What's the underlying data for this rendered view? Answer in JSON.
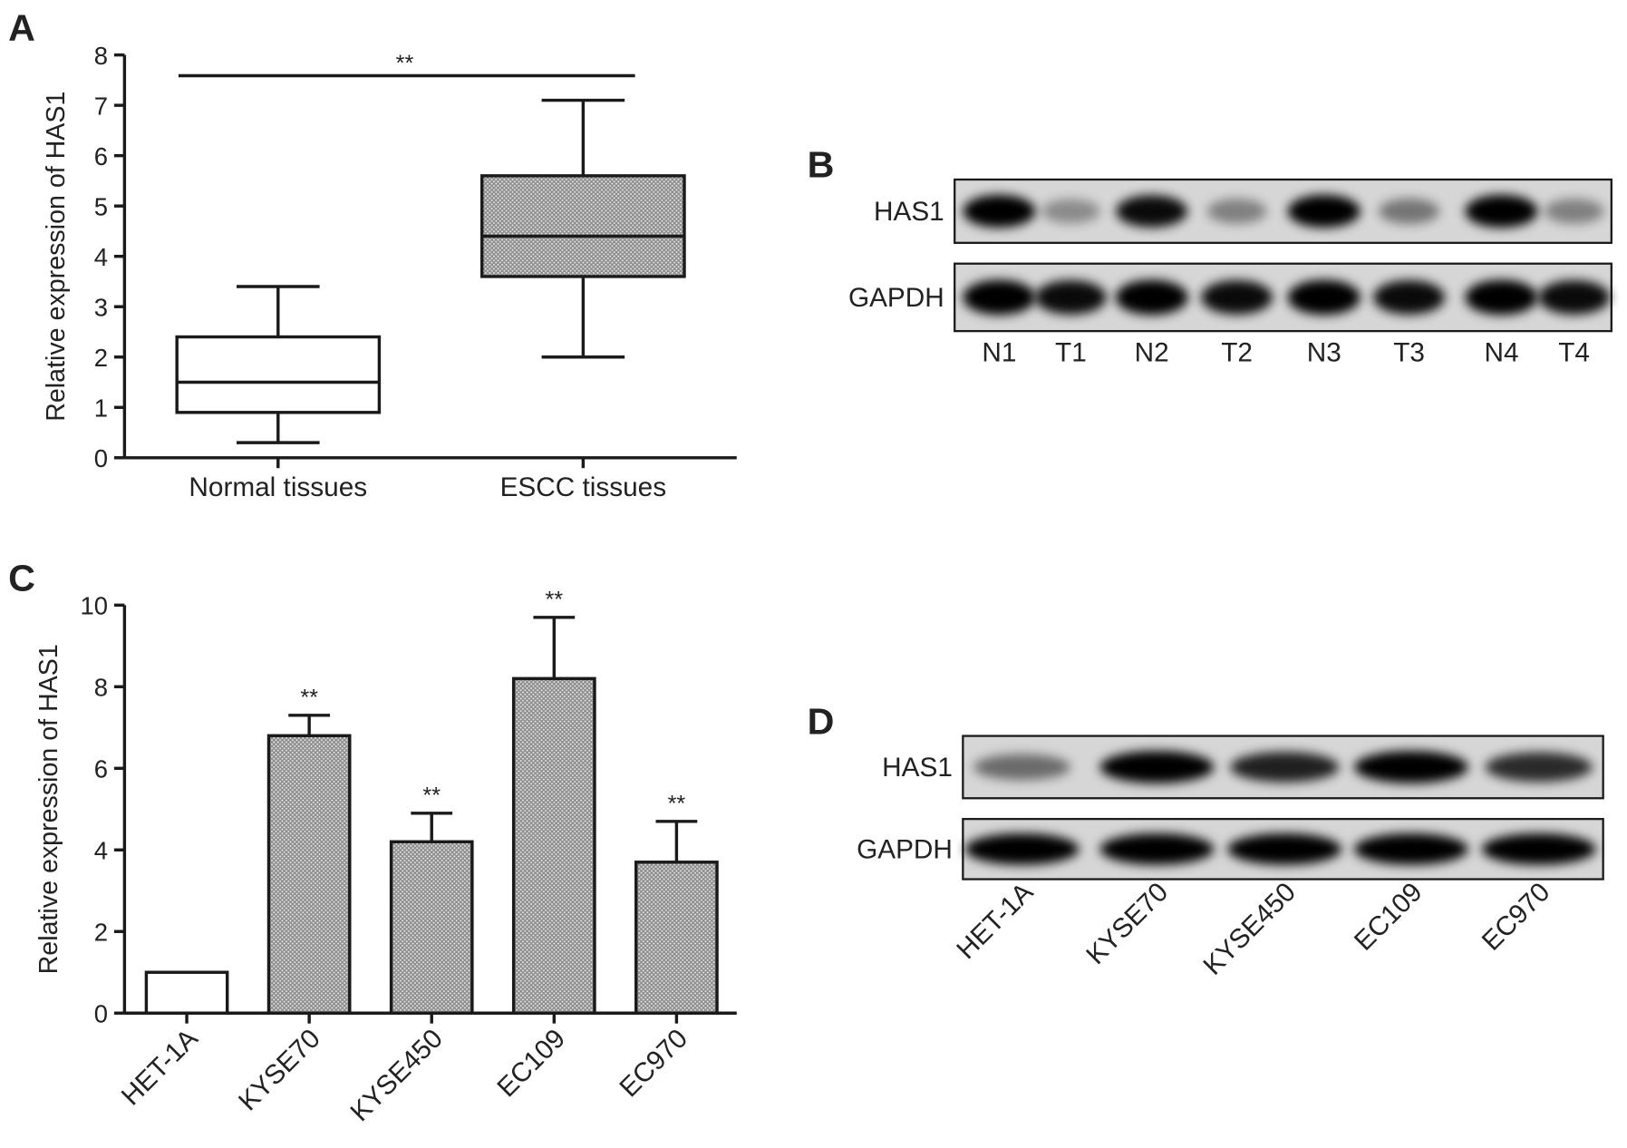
{
  "chart_data": [
    {
      "type": "box",
      "panel": "A",
      "ylabel": "Relative expression of HAS1",
      "categories": [
        "Normal tissues",
        "ESCC tissues"
      ],
      "min": [
        0.3,
        2.0
      ],
      "q1": [
        0.9,
        3.6
      ],
      "median": [
        1.5,
        4.4
      ],
      "q3": [
        2.4,
        5.6
      ],
      "max": [
        3.4,
        7.1
      ],
      "colors": [
        "#ffffff",
        "#8c8c8c"
      ],
      "ylim": [
        0,
        8
      ],
      "yticks": [
        0,
        1,
        2,
        3,
        4,
        5,
        6,
        7,
        8
      ],
      "significance": "**"
    },
    {
      "type": "bar",
      "panel": "C",
      "ylabel": "Relative expression of HAS1",
      "categories": [
        "HET-1A",
        "KYSE70",
        "KYSE450",
        "EC109",
        "EC970"
      ],
      "values": [
        1,
        6.8,
        4.2,
        8.2,
        3.7
      ],
      "errors": [
        0,
        0.5,
        0.7,
        1.5,
        1.0
      ],
      "annotations": [
        null,
        "**",
        "**",
        "**",
        "**"
      ],
      "colors": [
        "#ffffff",
        "#8c8c8c",
        "#8c8c8c",
        "#8c8c8c",
        "#8c8c8c"
      ],
      "ylim": [
        0,
        10
      ],
      "yticks": [
        0,
        2,
        4,
        6,
        8,
        10
      ]
    }
  ],
  "blots": [
    {
      "panel": "B",
      "rows": [
        "HAS1",
        "GAPDH"
      ],
      "lanes": [
        "N1",
        "T1",
        "N2",
        "T2",
        "N3",
        "T3",
        "N4",
        "T4"
      ]
    },
    {
      "panel": "D",
      "rows": [
        "HAS1",
        "GAPDH"
      ],
      "lanes": [
        "HET-1A",
        "KYSE70",
        "KYSE450",
        "EC109",
        "EC970"
      ]
    }
  ]
}
